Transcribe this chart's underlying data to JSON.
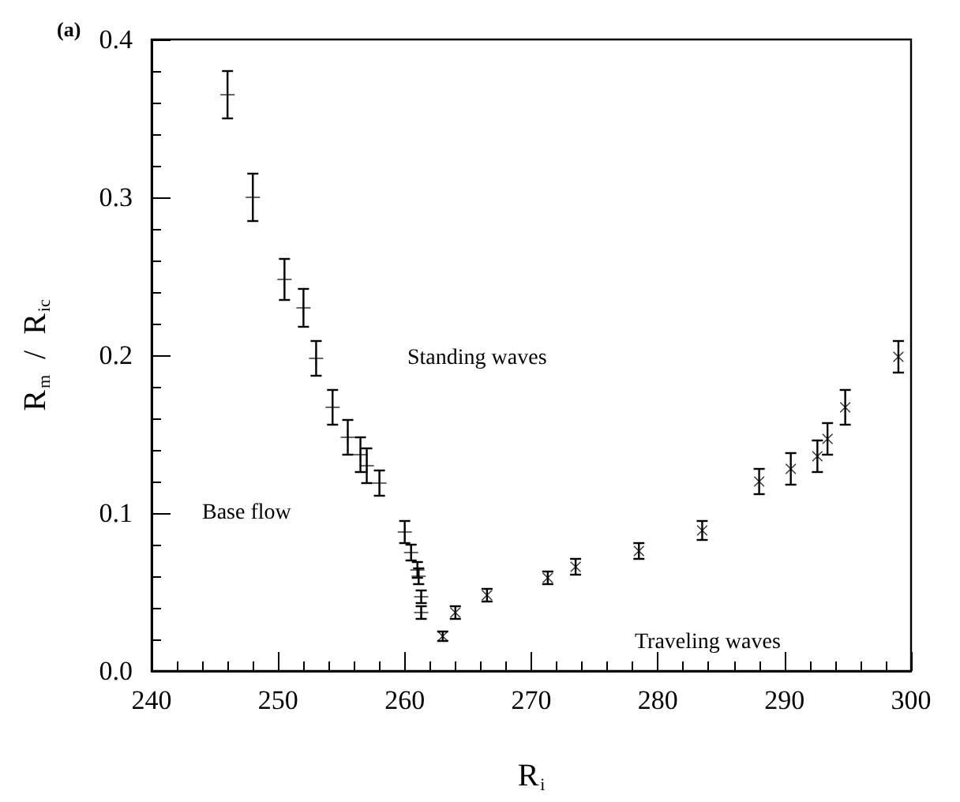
{
  "chart_data": {
    "type": "scatter",
    "xlabel": "R$_{i}$",
    "ylabel": "R$_{m}$  /  R$_{ic}$",
    "annotations": [
      "(a)",
      "Standing waves",
      "Base flow",
      "Traveling waves"
    ],
    "xlim": [
      240,
      300
    ],
    "xticks": [
      240,
      250,
      260,
      270,
      280,
      290,
      300
    ],
    "ylim": [
      0,
      0.4
    ],
    "yticks": [
      {
        "value": 0,
        "label": "0.0"
      },
      0.1,
      0.2,
      0.3,
      0.4
    ],
    "grid": false,
    "series": [
      {
        "color": "#000000",
        "marker": "cross",
        "x": [
          246,
          248,
          250.5,
          252,
          253,
          254.3,
          255.5,
          256.5,
          257,
          258,
          260,
          260.5,
          261,
          261.1,
          261.3,
          261.3
        ],
        "values": [
          0.365,
          0.3,
          0.248,
          0.23,
          0.198,
          0.167,
          0.148,
          0.137,
          0.13,
          0.119,
          0.088,
          0.075,
          0.064,
          0.06,
          0.047,
          0.037
        ],
        "errors": [
          0.015,
          0.015,
          0.013,
          0.012,
          0.011,
          0.011,
          0.011,
          0.011,
          0.011,
          0.008,
          0.007,
          0.005,
          0.005,
          0.005,
          0.004,
          0.004
        ]
      },
      {
        "color": "#000000",
        "marker": "star",
        "x": [
          263,
          264,
          266.5,
          271.3,
          273.5,
          278.5,
          283.5,
          288,
          290.5,
          292.6,
          293.4,
          294.8,
          299
        ],
        "values": [
          0.022,
          0.037,
          0.048,
          0.059,
          0.066,
          0.076,
          0.089,
          0.12,
          0.128,
          0.136,
          0.147,
          0.167,
          0.199
        ],
        "errors": [
          0.003,
          0.004,
          0.004,
          0.004,
          0.005,
          0.005,
          0.006,
          0.008,
          0.01,
          0.01,
          0.01,
          0.011,
          0.01
        ]
      }
    ]
  }
}
